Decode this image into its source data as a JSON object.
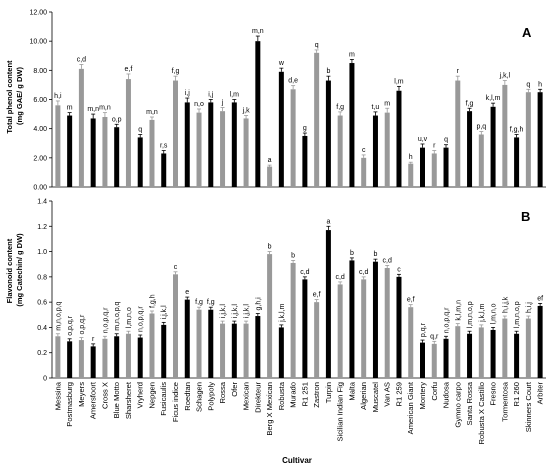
{
  "chart_data": [
    {
      "type": "bar",
      "panel_label": "A",
      "ylabel": "Total phenol content\n(mg GAE/ g DW)",
      "ylim": [
        0,
        12
      ],
      "yticks": [
        "0.00",
        "2.00",
        "4.00",
        "6.00",
        "8.00",
        "10.00",
        "12.00"
      ],
      "categories": [
        "Messina",
        "Postmasburg",
        "Meyers",
        "Amersfoort",
        "Cross X",
        "Blue Motto",
        "Sharsheret",
        "Vryherd",
        "Nepgen",
        "Fusicaulis",
        "Ficus indice",
        "Roedtan",
        "Schagen",
        "Polypoly",
        "Rossa",
        "Ofer",
        "Mexican",
        "Direkteur",
        "Berg X Mexican",
        "Robusta",
        "Murado",
        "R1 251",
        "Zastron",
        "Turpin",
        "Sicilian Indian Fig",
        "Malta",
        "Algerian",
        "Muscatel",
        "Van AS",
        "R1 259",
        "American Giant",
        "Montery",
        "Corfu",
        "Nudosa",
        "Gymno carpo",
        "Santa Rossa",
        "Robusta X Castillo",
        "Fresno",
        "Tormentosa",
        "R1 260",
        "Skinners Court",
        "Arbiter"
      ],
      "values": [
        5.6,
        4.9,
        8.1,
        4.7,
        4.8,
        4.1,
        7.4,
        3.4,
        4.6,
        2.3,
        7.3,
        5.8,
        5.1,
        5.8,
        5.2,
        5.8,
        4.7,
        10.0,
        1.4,
        7.9,
        6.7,
        3.5,
        9.2,
        7.3,
        4.9,
        8.5,
        2.0,
        4.9,
        5.1,
        6.6,
        1.6,
        2.7,
        2.3,
        2.7,
        7.3,
        5.2,
        3.6,
        5.5,
        7.0,
        3.4,
        6.5,
        6.5
      ],
      "errors": [
        0.3,
        0.2,
        0.3,
        0.3,
        0.3,
        0.2,
        0.35,
        0.2,
        0.2,
        0.2,
        0.3,
        0.3,
        0.25,
        0.2,
        0.25,
        0.2,
        0.2,
        0.35,
        0.1,
        0.25,
        0.25,
        0.2,
        0.2,
        0.3,
        0.25,
        0.25,
        0.2,
        0.25,
        0.3,
        0.3,
        0.1,
        0.25,
        0.2,
        0.2,
        0.3,
        0.2,
        0.2,
        0.25,
        0.3,
        0.2,
        0.2,
        0.2
      ],
      "letters": [
        "h,i",
        "m",
        "c,d",
        "m,n",
        "m,n",
        "o,p",
        "e,f",
        "q",
        "m,n",
        "r,s",
        "f,g",
        "i,j",
        "n,o",
        "i,j",
        "j",
        "l,m",
        "j,k",
        "m,n",
        "a",
        "w",
        "d,e",
        "g",
        "q",
        "b",
        "f,g",
        "m",
        "c",
        "t,u",
        "m",
        "l,m",
        "h",
        "u,v",
        "r",
        "q",
        "r",
        "f,g",
        "p,q",
        "k,l,m",
        "j,k,l",
        "f,g,h",
        "q",
        "h"
      ],
      "colors": {
        "gray": "#999999",
        "black": "#000000"
      },
      "bar_colors": [
        "gray",
        "black",
        "gray",
        "black",
        "gray",
        "black",
        "gray",
        "black",
        "gray",
        "black",
        "gray",
        "black",
        "gray",
        "black",
        "gray",
        "black",
        "gray",
        "black",
        "gray",
        "black",
        "gray",
        "black",
        "gray",
        "black",
        "gray",
        "black",
        "gray",
        "black",
        "gray",
        "black",
        "gray",
        "black",
        "gray",
        "black",
        "gray",
        "black",
        "gray",
        "black",
        "gray",
        "black",
        "gray",
        "black"
      ]
    },
    {
      "type": "bar",
      "panel_label": "B",
      "ylabel": "Flavonoid content\n(mg Catechin/ g DW)",
      "xlabel": "Cultivar",
      "ylim": [
        0,
        1.4
      ],
      "yticks": [
        "0",
        "0.2",
        "0.4",
        "0.6",
        "0.8",
        "1.0",
        "1.2",
        "1.4"
      ],
      "categories": [
        "Messina",
        "Postmasburg",
        "Meyers",
        "Amersfoort",
        "Cross X",
        "Blue Motto",
        "Sharsheret",
        "Vryherd",
        "Nepgen",
        "Fusicaulis",
        "Ficus indice",
        "Roedtan",
        "Schagen",
        "Polypoly",
        "Rossa",
        "Ofer",
        "Mexican",
        "Direkteur",
        "Berg X Mexican",
        "Robusta",
        "Murado",
        "R1 251",
        "Zastron",
        "Turpin",
        "Sicilian Indian Fig",
        "Malta",
        "Algerian",
        "Muscatel",
        "Van AS",
        "R1 259",
        "American Giant",
        "Montery",
        "Corfu",
        "Nudosa",
        "Gymno carpo",
        "Santa Rossa",
        "Robusta X Castillo",
        "Fresno",
        "Tormentosa",
        "R1 260",
        "Skinners Court",
        "Arbiter"
      ],
      "values": [
        0.33,
        0.29,
        0.3,
        0.25,
        0.31,
        0.33,
        0.35,
        0.32,
        0.51,
        0.42,
        0.82,
        0.62,
        0.54,
        0.54,
        0.43,
        0.43,
        0.43,
        0.49,
        0.98,
        0.4,
        0.91,
        0.78,
        0.6,
        1.17,
        0.74,
        0.93,
        0.78,
        0.92,
        0.87,
        0.8,
        0.56,
        0.28,
        0.27,
        0.31,
        0.41,
        0.35,
        0.4,
        0.38,
        0.47,
        0.35,
        0.47,
        0.57
      ],
      "errors": [
        0.02,
        0.02,
        0.02,
        0.02,
        0.02,
        0.02,
        0.02,
        0.02,
        0.02,
        0.02,
        0.02,
        0.02,
        0.02,
        0.02,
        0.02,
        0.02,
        0.02,
        0.02,
        0.02,
        0.02,
        0.02,
        0.02,
        0.02,
        0.03,
        0.02,
        0.02,
        0.02,
        0.02,
        0.02,
        0.02,
        0.02,
        0.02,
        0.02,
        0.02,
        0.02,
        0.02,
        0.02,
        0.02,
        0.02,
        0.02,
        0.02,
        0.02
      ],
      "letters": [
        "m,n,o,p,q",
        "o,p,q,r",
        "o,p,q,r",
        "r",
        "n,o,p,q,r",
        "m,n,o,p,q",
        "l,m,n,o",
        "n,o,p,q,r",
        "f,g,h",
        "i,j,k,l",
        "c",
        "e",
        "f,g",
        "f,g",
        "i,j,k,l",
        "i,j,k,l",
        "i,j,k,l",
        "g,h,i",
        "b",
        "j,k,l,m",
        "b",
        "c,d",
        "e,f",
        "a",
        "c,d",
        "b",
        "c,d",
        "b",
        "c,d",
        "c",
        "e,f",
        "p,q,r",
        "q,r",
        "n,o,p,q,r",
        "k,l,m,n",
        "l,m,n,o,p",
        "j,k,l,m",
        "l,m,n,o",
        "h,i,j,k",
        "l,m,n,o,p",
        "h,i,j",
        "ef"
      ],
      "colors": {
        "gray": "#999999",
        "black": "#000000"
      },
      "bar_colors": [
        "gray",
        "black",
        "gray",
        "black",
        "gray",
        "black",
        "gray",
        "black",
        "gray",
        "black",
        "gray",
        "black",
        "gray",
        "black",
        "gray",
        "black",
        "gray",
        "black",
        "gray",
        "black",
        "gray",
        "black",
        "gray",
        "black",
        "gray",
        "black",
        "gray",
        "black",
        "gray",
        "black",
        "gray",
        "black",
        "gray",
        "black",
        "gray",
        "black",
        "gray",
        "black",
        "gray",
        "black",
        "gray",
        "black"
      ]
    }
  ]
}
